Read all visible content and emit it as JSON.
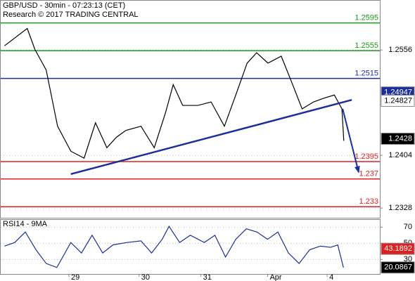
{
  "chart_data": [
    {
      "type": "line",
      "title": "GBP/USD - 30min - 07:23:13 (CET)",
      "subtitle": "Research © 2017 TRADING CENTRAL",
      "x": [
        1,
        7,
        9,
        12,
        15,
        18.5,
        22,
        25,
        28,
        30.5,
        33,
        37,
        40.5,
        43.5,
        45.5,
        48,
        52,
        55.5,
        59,
        62,
        65,
        67.5,
        70.5,
        74,
        77,
        79.5,
        82.5,
        85,
        88,
        90,
        90.5
      ],
      "series": [
        {
          "color": "#000000",
          "values": [
            1.2562,
            1.2587,
            1.2557,
            1.2527,
            1.2446,
            1.241,
            1.24,
            1.2451,
            1.2415,
            1.243,
            1.244,
            1.2446,
            1.2415,
            1.2466,
            1.2506,
            1.2476,
            1.2476,
            1.2481,
            1.2446,
            1.2491,
            1.2537,
            1.2552,
            1.2537,
            1.2547,
            1.2506,
            1.2471,
            1.2481,
            1.2486,
            1.2491,
            1.2471,
            1.2425
          ]
        }
      ],
      "xlim": [
        0,
        100
      ],
      "ylim": [
        1.2314,
        1.2626
      ],
      "yticks": [
        1.2556,
        1.2404,
        1.2328
      ],
      "levels": [
        {
          "value": 1.2595,
          "color": "#1a9a1a"
        },
        {
          "value": 1.2555,
          "color": "#1a9a1a"
        },
        {
          "value": 1.2515,
          "color": "#1c2d9c"
        },
        {
          "value": 1.2395,
          "color": "#e02020"
        },
        {
          "value": 1.237,
          "color": "#e02020"
        },
        {
          "value": 1.233,
          "color": "#e02020"
        }
      ],
      "price_tags": [
        {
          "value": 1.24947,
          "bg": "#1c2d9c",
          "fg": "#ffffff"
        },
        {
          "value": 1.24827,
          "bg": "#ffffff",
          "fg": "#000000"
        },
        {
          "value": 1.2428,
          "bg": "#000000",
          "fg": "#ffffff"
        }
      ],
      "trendline": {
        "x": [
          18.5,
          92.6
        ],
        "y": [
          1.2377,
          1.2484
        ],
        "color": "#1c2d9c"
      },
      "arrow": {
        "x": [
          90.2,
          94.4
        ],
        "y": [
          1.2471,
          1.238
        ],
        "color": "#1c2d9c"
      }
    },
    {
      "type": "line",
      "title": "RSI14 - 9MA",
      "x": [
        1,
        3.7,
        6.5,
        9.3,
        12,
        14.8,
        18.5,
        21.3,
        24.1,
        26.9,
        29.6,
        33.3,
        37,
        39.8,
        42.6,
        44.4,
        47.2,
        50,
        53.7,
        56.5,
        59.3,
        62,
        64.8,
        67.6,
        70.4,
        73.1,
        75.9,
        78.7,
        81.5,
        84.3,
        87,
        88.9,
        90.4
      ],
      "series": [
        {
          "color": "#1c2d9c",
          "values": [
            46.5,
            51,
            64,
            42,
            25,
            20,
            51,
            38,
            60,
            38,
            48,
            51,
            53,
            38,
            55,
            71,
            51,
            60,
            51,
            60,
            33,
            55,
            68,
            64,
            55,
            64,
            38,
            25,
            42,
            46.5,
            45,
            48,
            20
          ]
        }
      ],
      "xlim": [
        0,
        100
      ],
      "ylim": [
        12,
        79
      ],
      "yticks": [
        70,
        50,
        30
      ],
      "xticks": [
        {
          "value": 18,
          "label": "29"
        },
        {
          "value": 36.5,
          "label": "30"
        },
        {
          "value": 52.8,
          "label": "31"
        },
        {
          "value": 70.4,
          "label": "Apr"
        },
        {
          "value": 86.1,
          "label": "4"
        }
      ],
      "price_tags": [
        {
          "value": 43.1892,
          "bg": "#e02020",
          "fg": "#ffffff"
        },
        {
          "value": 20.0867,
          "bg": "#000000",
          "fg": "#ffffff"
        }
      ]
    }
  ]
}
